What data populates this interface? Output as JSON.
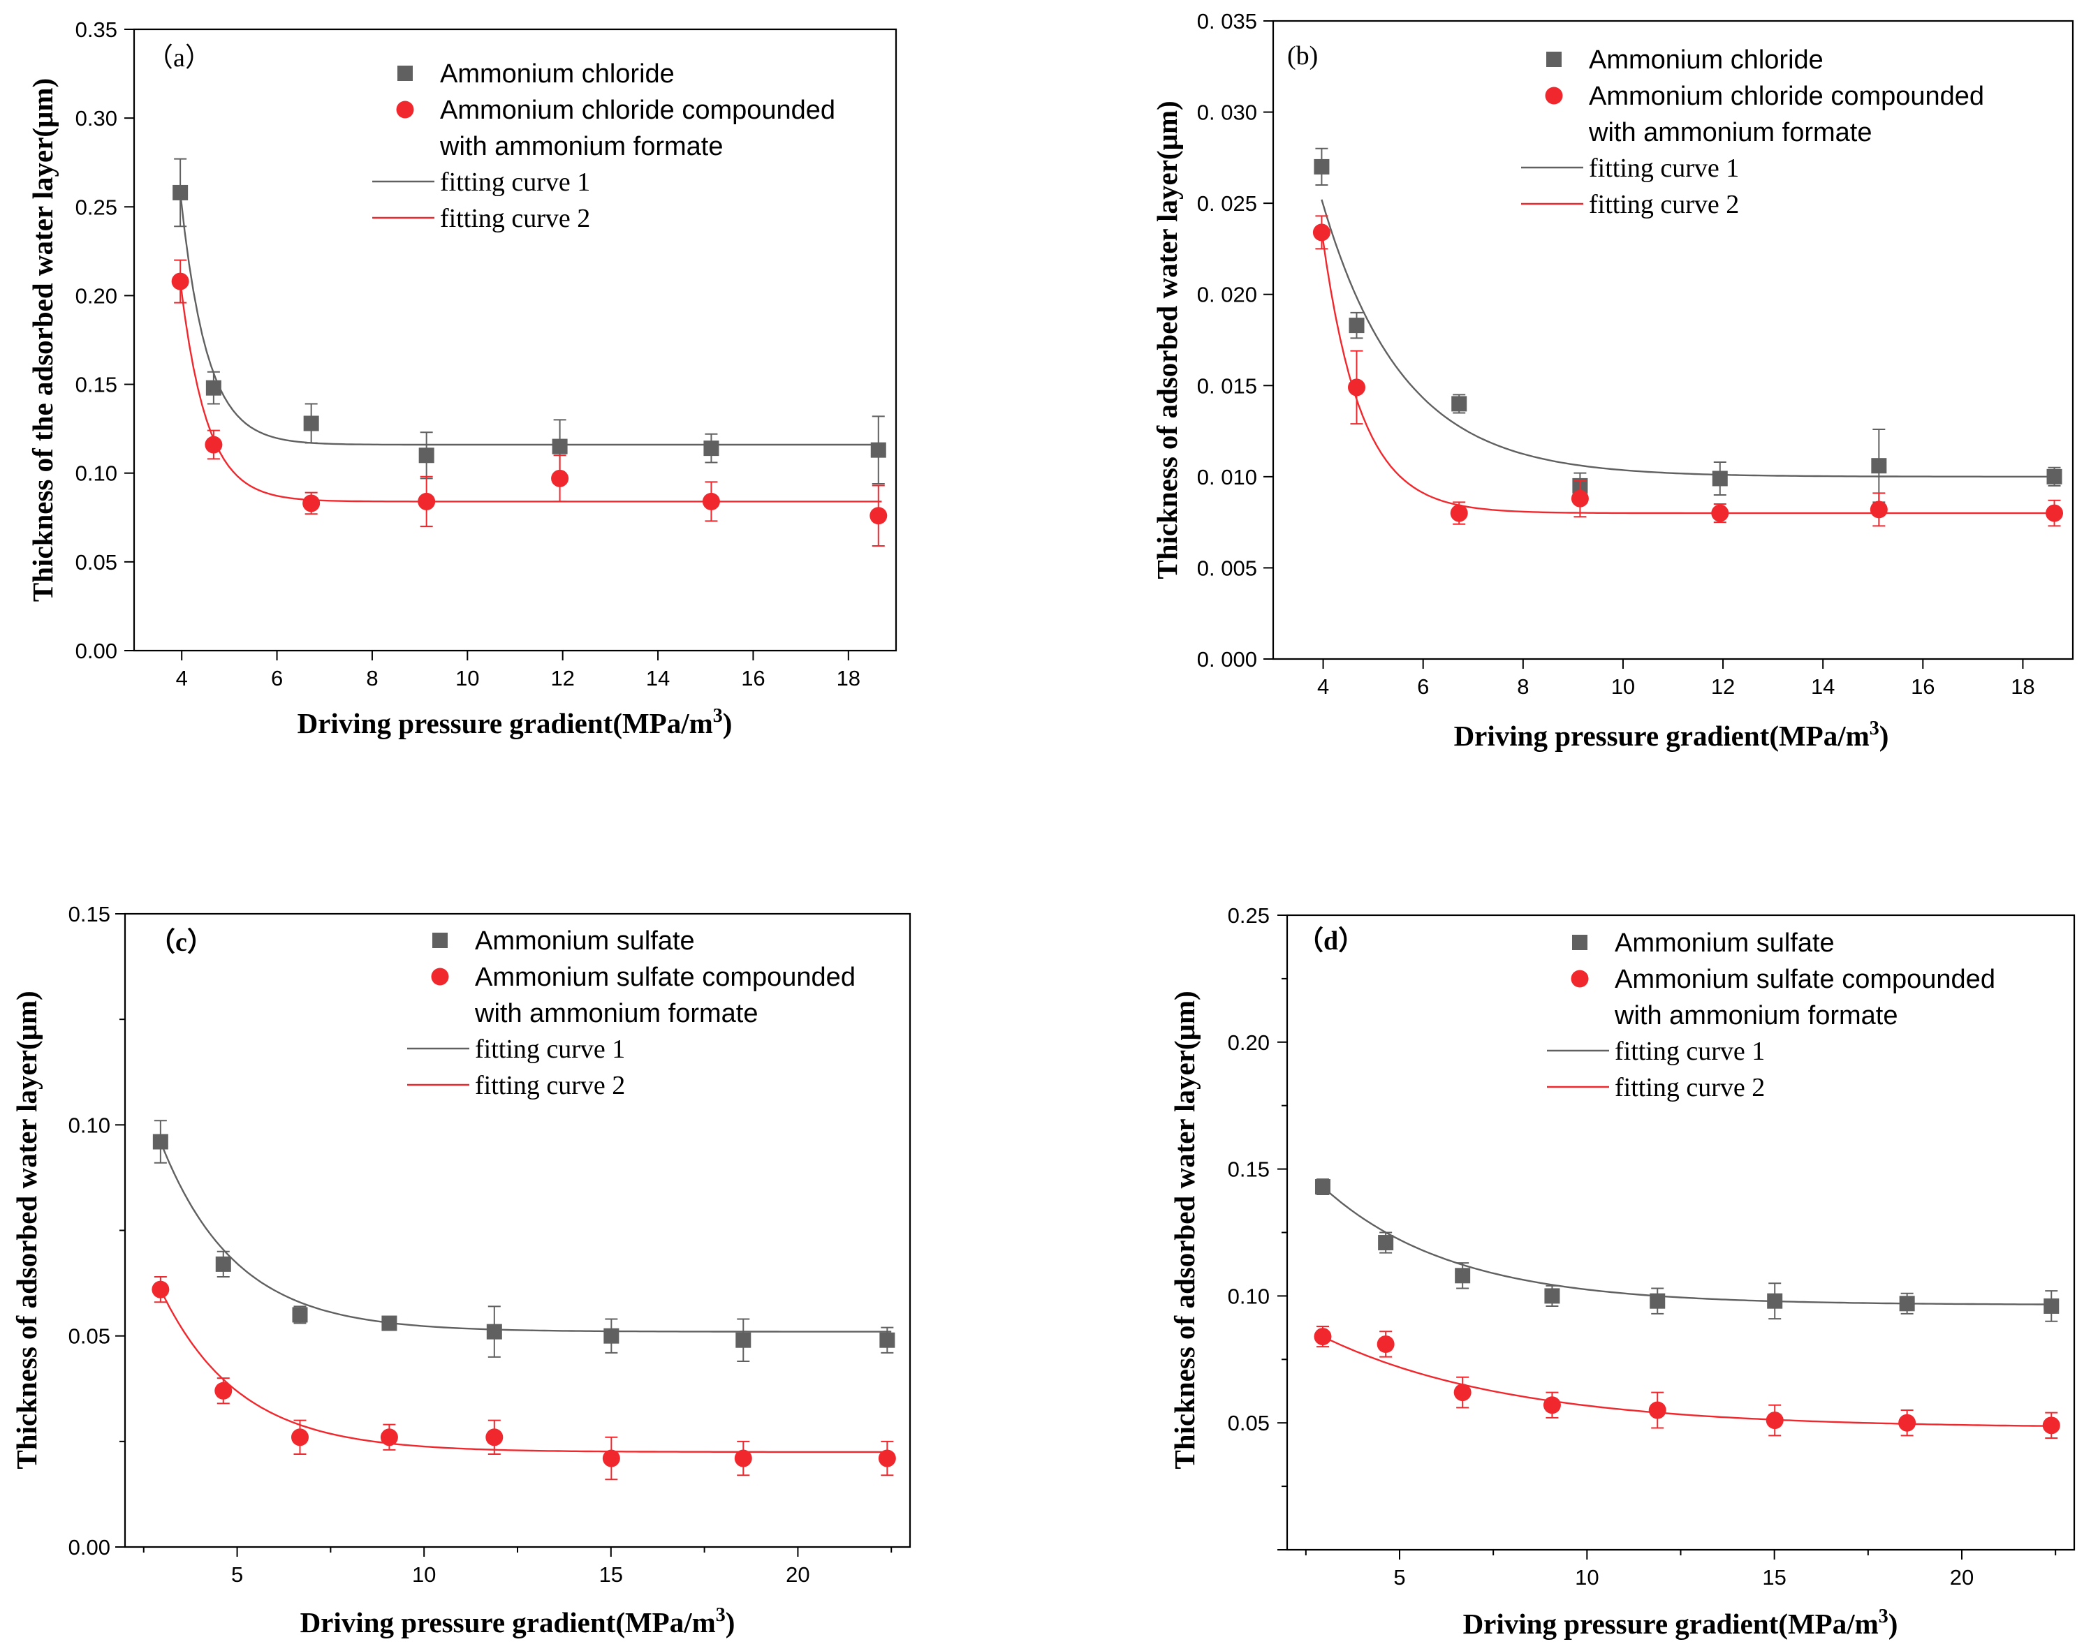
{
  "chart_data": [
    {
      "type": "scatter",
      "panel_label": "（a）",
      "xlabel": "Driving pressure gradient(MPa/m",
      "xlabel_sup": "3",
      "xlabel_end": ")",
      "ylabel": "Thickness of the adsorbed water layer(μm)",
      "xlim": [
        3,
        19
      ],
      "ylim": [
        0,
        0.35
      ],
      "xticks": [
        4,
        6,
        8,
        10,
        12,
        14,
        16,
        18
      ],
      "yticks": [
        0.0,
        0.05,
        0.1,
        0.15,
        0.2,
        0.25,
        0.3,
        0.35
      ],
      "ytick_labels": [
        "0.00",
        "0.05",
        "0.10",
        "0.15",
        "0.20",
        "0.25",
        "0.30",
        "0.35"
      ],
      "legend_position": "top-right",
      "colors": {
        "series1": "#606060",
        "series2": "#f0282d",
        "fit1": "#606060",
        "fit2": "#f0282d"
      },
      "series": [
        {
          "name": "Ammonium chloride",
          "marker": "square",
          "x": [
            3.97,
            4.67,
            6.72,
            9.14,
            11.94,
            15.12,
            18.63
          ],
          "y": [
            0.258,
            0.148,
            0.128,
            0.11,
            0.115,
            0.114,
            0.113
          ],
          "err": [
            0.019,
            0.009,
            0.011,
            0.013,
            0.015,
            0.008,
            0.019
          ]
        },
        {
          "name_lines": [
            "Ammonium chloride compounded",
            "with ammonium formate"
          ],
          "marker": "circle",
          "x": [
            3.97,
            4.67,
            6.72,
            9.14,
            11.94,
            15.12,
            18.63
          ],
          "y": [
            0.208,
            0.116,
            0.083,
            0.084,
            0.097,
            0.084,
            0.076
          ],
          "err": [
            0.012,
            0.008,
            0.006,
            0.014,
            0.013,
            0.011,
            0.017
          ]
        }
      ],
      "fits": [
        {
          "name": "fitting curve 1",
          "x0": 3.97,
          "x1": 18.7,
          "a": 0.116,
          "b": 0.142,
          "k": 1.8
        },
        {
          "name": "fitting curve 2",
          "x0": 3.97,
          "x1": 18.7,
          "a": 0.084,
          "b": 0.124,
          "k": 1.8
        }
      ]
    },
    {
      "type": "scatter",
      "panel_label": "(b)",
      "xlabel": "Driving pressure gradient(MPa/m",
      "xlabel_sup": "3",
      "xlabel_end": ")",
      "ylabel": "Thickness of adsorbed water layer(μm)",
      "xlim": [
        3,
        19
      ],
      "ylim": [
        0,
        0.035
      ],
      "xticks": [
        4,
        6,
        8,
        10,
        12,
        14,
        16,
        18
      ],
      "yticks": [
        0.0,
        0.005,
        0.01,
        0.015,
        0.02,
        0.025,
        0.03,
        0.035
      ],
      "ytick_labels": [
        "0. 000",
        "0. 005",
        "0. 010",
        "0. 015",
        "0. 020",
        "0. 025",
        "0. 030",
        "0. 035"
      ],
      "legend_position": "top-right",
      "colors": {
        "series1": "#606060",
        "series2": "#f0282d",
        "fit1": "#606060",
        "fit2": "#f0282d"
      },
      "series": [
        {
          "name": "Ammonium chloride",
          "marker": "square",
          "x": [
            3.97,
            4.67,
            6.72,
            9.14,
            11.94,
            15.12,
            18.63
          ],
          "y": [
            0.027,
            0.0183,
            0.014,
            0.0095,
            0.0099,
            0.0106,
            0.01
          ],
          "err": [
            0.001,
            0.0007,
            0.0005,
            0.0007,
            0.0009,
            0.002,
            0.0005
          ]
        },
        {
          "name_lines": [
            "Ammonium chloride compounded",
            "with ammonium formate"
          ],
          "marker": "circle",
          "x": [
            3.97,
            4.67,
            6.72,
            9.14,
            11.94,
            15.12,
            18.63
          ],
          "y": [
            0.0234,
            0.0149,
            0.008,
            0.0088,
            0.008,
            0.0082,
            0.008
          ],
          "err": [
            0.0009,
            0.002,
            0.0006,
            0.001,
            0.0005,
            0.0009,
            0.0007
          ]
        }
      ],
      "fits": [
        {
          "name": "fitting curve 1",
          "x0": 3.97,
          "x1": 18.7,
          "a": 0.01,
          "b": 0.0152,
          "k": 0.62
        },
        {
          "name": "fitting curve 2",
          "x0": 3.97,
          "x1": 18.7,
          "a": 0.008,
          "b": 0.0155,
          "k": 1.3
        }
      ]
    },
    {
      "type": "scatter",
      "panel_label": "（c）",
      "xlabel": "Driving pressure gradient(MPa/m",
      "xlabel_sup": "3",
      "xlabel_end": ")",
      "ylabel": "Thickness of adsorbed water layer(μm)",
      "xlim": [
        2,
        23
      ],
      "ylim": [
        0,
        0.15
      ],
      "xticks": [
        5,
        10,
        15,
        20
      ],
      "yticks": [
        0.0,
        0.05,
        0.1,
        0.15
      ],
      "ytick_labels": [
        "0.00",
        "0.05",
        "0.10",
        "0.15"
      ],
      "minor_xticks": [
        2.5,
        7.5,
        12.5,
        17.5,
        22.5
      ],
      "minor_yticks": [
        0.025,
        0.075,
        0.125
      ],
      "legend_position": "top-right",
      "colors": {
        "series1": "#606060",
        "series2": "#f0282d",
        "fit1": "#606060",
        "fit2": "#f0282d"
      },
      "series": [
        {
          "name": "Ammonium sulfate",
          "marker": "square",
          "x": [
            2.95,
            4.63,
            6.68,
            9.07,
            11.88,
            15.01,
            18.54,
            22.39
          ],
          "y": [
            0.096,
            0.067,
            0.055,
            0.053,
            0.051,
            0.05,
            0.049,
            0.049
          ],
          "err": [
            0.005,
            0.003,
            0.002,
            0.001,
            0.006,
            0.004,
            0.005,
            0.003
          ]
        },
        {
          "name_lines": [
            "Ammonium sulfate compounded",
            "with ammonium formate"
          ],
          "marker": "circle",
          "x": [
            2.95,
            4.63,
            6.68,
            9.07,
            11.88,
            15.01,
            18.54,
            22.39
          ],
          "y": [
            0.061,
            0.037,
            0.026,
            0.026,
            0.026,
            0.021,
            0.021,
            0.021
          ],
          "err": [
            0.003,
            0.003,
            0.004,
            0.003,
            0.004,
            0.005,
            0.004,
            0.004
          ]
        }
      ],
      "fits": [
        {
          "name": "fitting curve 1",
          "x0": 2.95,
          "x1": 22.5,
          "a": 0.051,
          "b": 0.045,
          "k": 0.5
        },
        {
          "name": "fitting curve 2",
          "x0": 2.95,
          "x1": 22.5,
          "a": 0.0225,
          "b": 0.0385,
          "k": 0.48
        }
      ]
    },
    {
      "type": "scatter",
      "panel_label": "（d）",
      "xlabel": "Driving pressure gradient(MPa/m",
      "xlabel_sup": "3",
      "xlabel_end": ")",
      "ylabel": "Thickness of adsorbed water layer(μm)",
      "xlim": [
        2,
        23
      ],
      "ylim": [
        0,
        0.25
      ],
      "xticks": [
        5,
        10,
        15,
        20
      ],
      "yticks": [
        0.05,
        0.1,
        0.15,
        0.2,
        0.25
      ],
      "ytick_labels": [
        "0.05",
        "0.10",
        "0.15",
        "0.20",
        "0.25"
      ],
      "minor_xticks": [
        2.5,
        7.5,
        12.5,
        17.5,
        22.5
      ],
      "minor_yticks": [
        0.025,
        0.075,
        0.125,
        0.175,
        0.225
      ],
      "legend_position": "top-right",
      "colors": {
        "series1": "#606060",
        "series2": "#f0282d",
        "fit1": "#606060",
        "fit2": "#f0282d"
      },
      "series": [
        {
          "name": "Ammonium sulfate",
          "marker": "square",
          "x": [
            2.95,
            4.63,
            6.68,
            9.07,
            11.88,
            15.01,
            18.54,
            22.39
          ],
          "y": [
            0.143,
            0.121,
            0.108,
            0.1,
            0.098,
            0.098,
            0.097,
            0.096
          ],
          "err": [
            0.003,
            0.004,
            0.005,
            0.004,
            0.005,
            0.007,
            0.004,
            0.006
          ]
        },
        {
          "name_lines": [
            "Ammonium sulfate compounded",
            "with ammonium formate"
          ],
          "marker": "circle",
          "x": [
            2.95,
            4.63,
            6.68,
            9.07,
            11.88,
            15.01,
            18.54,
            22.39
          ],
          "y": [
            0.084,
            0.081,
            0.062,
            0.057,
            0.055,
            0.051,
            0.05,
            0.049
          ],
          "err": [
            0.004,
            0.005,
            0.006,
            0.005,
            0.007,
            0.006,
            0.005,
            0.005
          ]
        }
      ],
      "fits": [
        {
          "name": "fitting curve 1",
          "x0": 2.95,
          "x1": 22.5,
          "a": 0.0965,
          "b": 0.0465,
          "k": 0.29
        },
        {
          "name": "fitting curve 2",
          "x0": 2.95,
          "x1": 22.5,
          "a": 0.048,
          "b": 0.036,
          "k": 0.2
        }
      ]
    }
  ]
}
